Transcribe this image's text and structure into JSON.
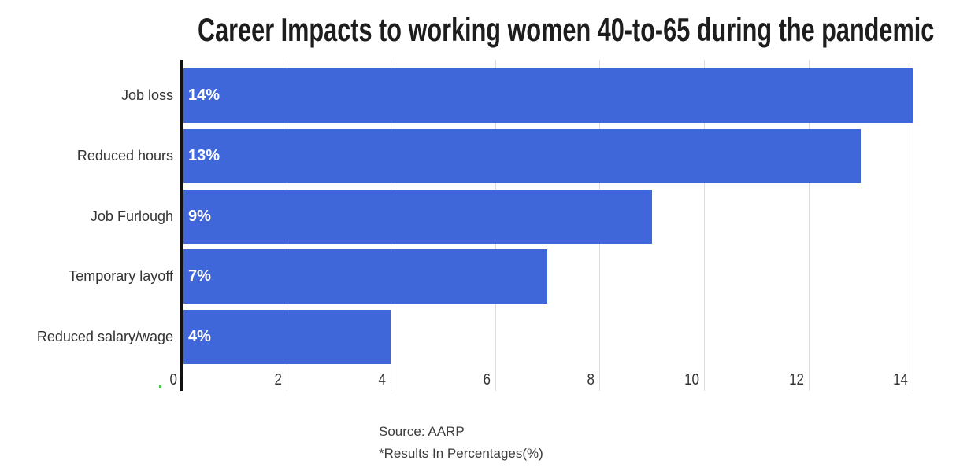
{
  "title": "Career Impacts to working women 40-to-65 during the pandemic",
  "chart_data": {
    "type": "bar",
    "orientation": "horizontal",
    "title": "Career Impacts to working women 40-to-65 during the pandemic",
    "categories": [
      "Job loss",
      "Reduced hours",
      "Job Furlough",
      "Temporary layoff",
      "Reduced salary/wage"
    ],
    "values": [
      14,
      13,
      9,
      7,
      4
    ],
    "value_labels": [
      "14%",
      "13%",
      "9%",
      "7%",
      "4%"
    ],
    "x_ticks": [
      0,
      2,
      4,
      6,
      8,
      10,
      12,
      14
    ],
    "xlim": [
      0,
      14
    ],
    "grid": "vertical light gray gridlines",
    "legend": "none",
    "source": "Source: AARP",
    "note": "*Results In Percentages(%)"
  },
  "footer": {
    "source_label": "Source: AARP",
    "note_label": "*Results In Percentages(%)"
  },
  "colors": {
    "bar": "#4067DA",
    "axis": "#111111",
    "grid": "#dddddd",
    "title_text": "#1d1d1d",
    "text": "#333333",
    "value_text": "#ffffff",
    "artifact_green": "#55bb55",
    "background": "#ffffff"
  }
}
